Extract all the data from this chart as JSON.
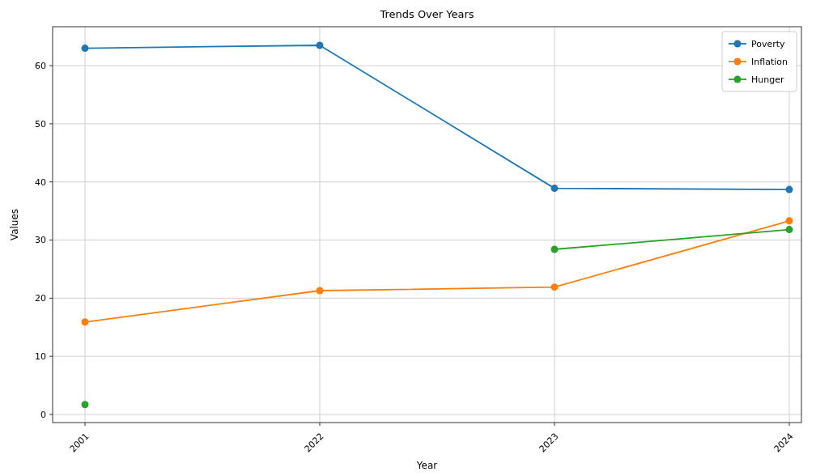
{
  "chart_data": {
    "type": "line",
    "title": "Trends Over Years",
    "xlabel": "Year",
    "ylabel": "Values",
    "categories": [
      "2001",
      "2022",
      "2023",
      "2024"
    ],
    "series": [
      {
        "name": "Poverty",
        "color": "#1f77b4",
        "values": [
          63.0,
          63.5,
          38.9,
          38.7
        ]
      },
      {
        "name": "Inflation",
        "color": "#ff7f0e",
        "values": [
          15.9,
          21.3,
          21.9,
          33.3
        ]
      },
      {
        "name": "Hunger",
        "color": "#2ca02c",
        "values": [
          1.7,
          null,
          28.4,
          31.8
        ]
      }
    ],
    "ylim": [
      -1.4,
      66.7
    ],
    "yticks": [
      0,
      10,
      20,
      30,
      40,
      50,
      60
    ],
    "grid": true,
    "legend": "top right",
    "marker": "circle",
    "line_style": "solid"
  }
}
